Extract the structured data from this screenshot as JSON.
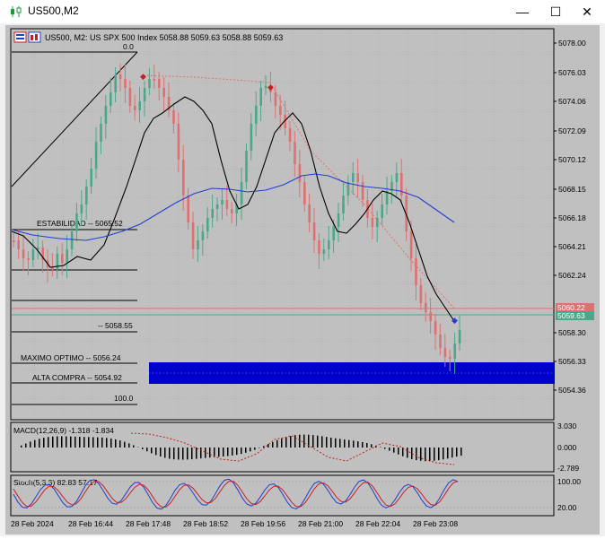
{
  "window": {
    "title": "US500,M2",
    "min_symbol": "—",
    "max_symbol": "☐",
    "close_symbol": "✕"
  },
  "header": {
    "symbol_text": "US500, M2:  US SPX 500 Index  5058.88 5059.63 5058.88 5059.63"
  },
  "price_axis": [
    "5078.00",
    "5076.03",
    "5074.06",
    "5072.09",
    "5070.12",
    "5068.15",
    "5066.18",
    "5064.21",
    "5062.24",
    "5058.30",
    "5056.33",
    "5054.36"
  ],
  "price_tags": {
    "hidden": "5060.22",
    "current": "5059.63"
  },
  "fib": {
    "top": "0.0",
    "estabilidad": "ESTABILIDAD -- 5065.52",
    "level3": "-- 5058.55",
    "maximo": "MAXIMO OPTIMO -- 5056.24",
    "alta": "ALTA COMPRA -- 5054.92",
    "bottom": "100.0"
  },
  "macd": {
    "label": "MACD(12,26,9) -1.318 -1.834",
    "axis": [
      "3.030",
      "0.000",
      "-2.789"
    ]
  },
  "stoch": {
    "label": "Stoch(5,3,3) 82.83 57.17",
    "axis": [
      "100.00",
      "20.00"
    ]
  },
  "time_axis": [
    "28 Feb 2024",
    "28 Feb 16:44",
    "28 Feb 17:48",
    "28 Feb 18:52",
    "28 Feb 19:56",
    "28 Feb 21:00",
    "28 Feb 22:04",
    "28 Feb 23:08"
  ],
  "colors": {
    "bg": "#c0c0c0",
    "bull": "#4aa88a",
    "bear": "#e07070",
    "ma_black": "#000000",
    "ma_blue": "#1f3fd0",
    "zone": "#0000cc",
    "stoch_main": "#1f3fd0",
    "stoch_signal": "#cc2020"
  }
}
